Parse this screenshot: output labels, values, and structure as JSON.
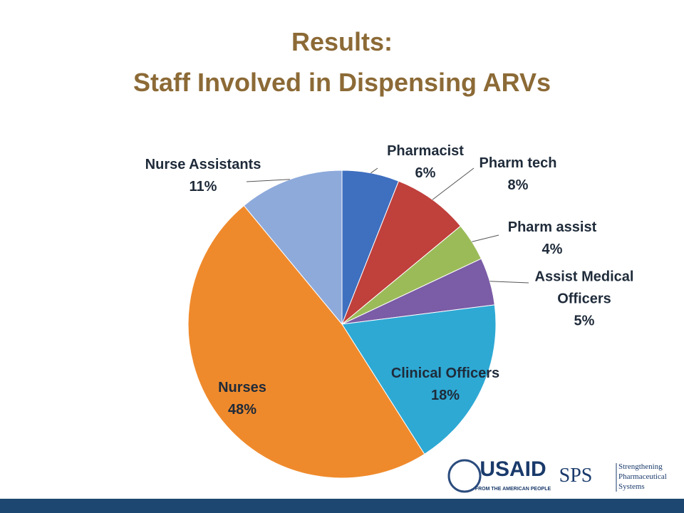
{
  "chart_data": {
    "type": "pie",
    "title": "Results:",
    "subtitle": "Staff Involved in Dispensing ARVs",
    "categories": [
      "Pharmacist",
      "Pharm tech",
      "Pharm assist",
      "Assist Medical Officers",
      "Clinical Officers",
      "Nurses",
      "Nurse Assistants"
    ],
    "values": [
      6,
      8,
      4,
      5,
      18,
      48,
      11
    ],
    "value_labels": [
      "6%",
      "8%",
      "4%",
      "5%",
      "18%",
      "48%",
      "11%"
    ],
    "colors": [
      "#3f6fbf",
      "#c0403c",
      "#9bbb59",
      "#7b5ca6",
      "#2ea9d4",
      "#ef8a2c",
      "#8eaadb"
    ]
  },
  "footer": {
    "usaid": "USAID",
    "usaid_tagline": "FROM THE AMERICAN PEOPLE",
    "sps": "SPS",
    "sps_name": "Strengthening Pharmaceutical Systems"
  }
}
